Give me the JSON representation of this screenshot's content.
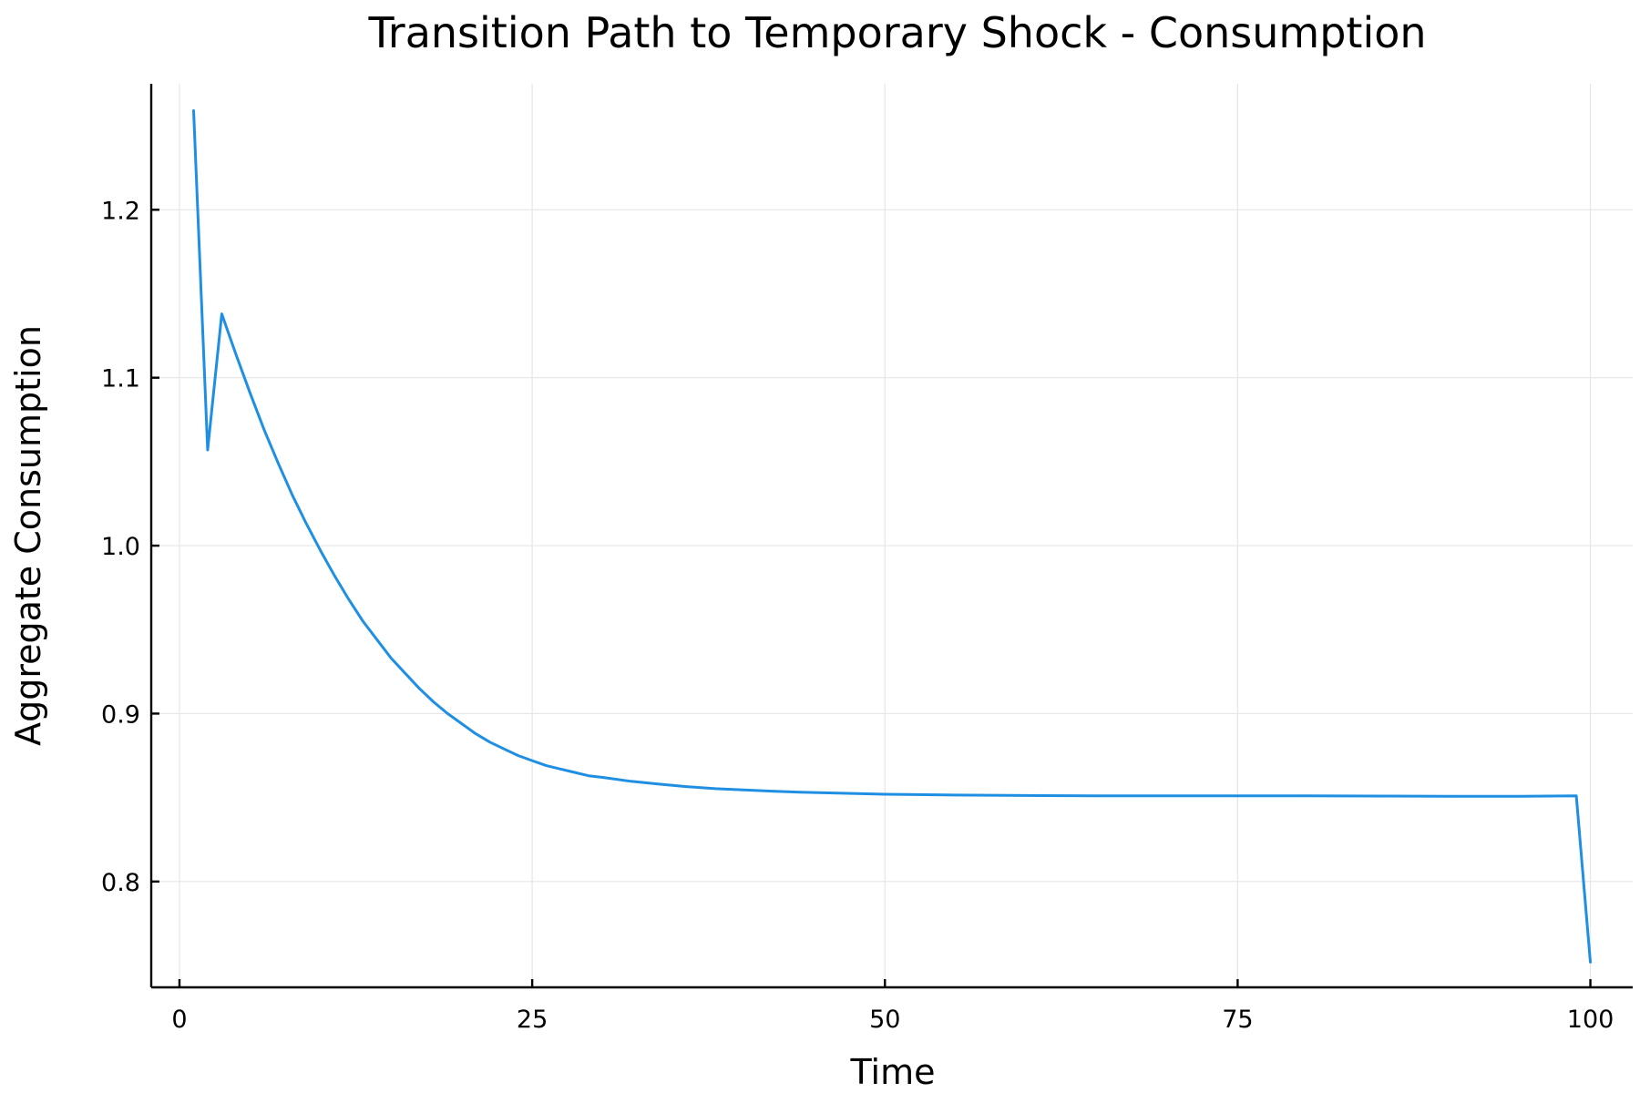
{
  "chart_data": {
    "type": "line",
    "title": "Transition Path to Temporary Shock - Consumption",
    "xlabel": "Time",
    "ylabel": "Aggregate Consumption",
    "xlim": [
      -2,
      103
    ],
    "ylim": [
      0.737,
      1.275
    ],
    "xticks": [
      0,
      25,
      50,
      75,
      100
    ],
    "xtick_labels": [
      "0",
      "25",
      "50",
      "75",
      "100"
    ],
    "yticks": [
      0.8,
      0.9,
      1.0,
      1.1,
      1.2
    ],
    "ytick_labels": [
      "0.8",
      "0.9",
      "1.0",
      "1.1",
      "1.2"
    ],
    "grid": true,
    "legend": "none",
    "color": "#1f8fe3",
    "series": [
      {
        "x": [
          1,
          2,
          3,
          4,
          5,
          6,
          7,
          8,
          9,
          10,
          11,
          12,
          13,
          14,
          15,
          16,
          17,
          18,
          19,
          20,
          21,
          22,
          23,
          24,
          25,
          26,
          27,
          28,
          29,
          30,
          32,
          34,
          36,
          38,
          40,
          42,
          44,
          46,
          48,
          50,
          55,
          60,
          65,
          70,
          75,
          80,
          85,
          90,
          95,
          99,
          100
        ],
        "values": [
          1.259,
          1.057,
          1.138,
          1.114,
          1.091,
          1.069,
          1.049,
          1.03,
          1.013,
          0.997,
          0.982,
          0.968,
          0.955,
          0.944,
          0.933,
          0.924,
          0.915,
          0.907,
          0.9,
          0.894,
          0.888,
          0.883,
          0.879,
          0.875,
          0.872,
          0.869,
          0.867,
          0.865,
          0.863,
          0.862,
          0.8597,
          0.858,
          0.8565,
          0.8553,
          0.8545,
          0.8538,
          0.8532,
          0.8528,
          0.8524,
          0.852,
          0.8515,
          0.8512,
          0.851,
          0.851,
          0.851,
          0.851,
          0.8509,
          0.8508,
          0.8508,
          0.851,
          0.752
        ]
      }
    ]
  }
}
